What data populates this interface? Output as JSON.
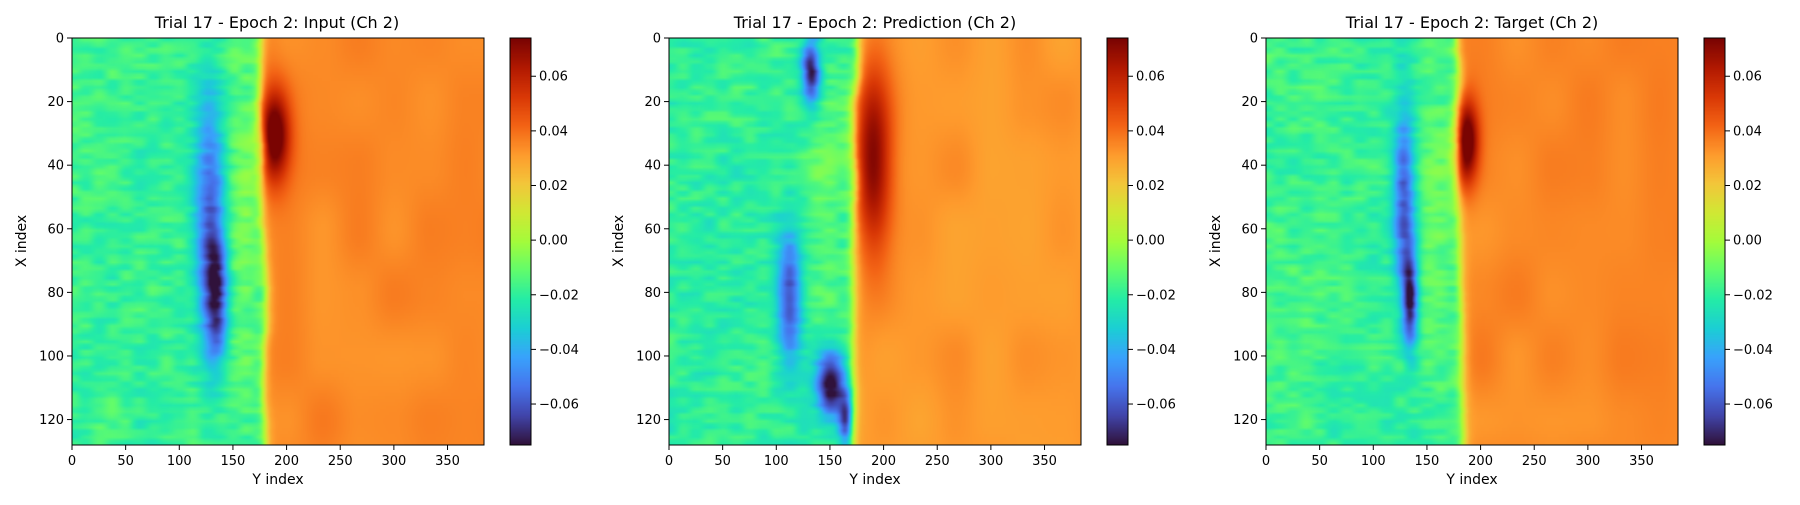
{
  "figure": {
    "background": "#ffffff",
    "colormap": "turbo",
    "colormap_stops": [
      "#30123b",
      "#4145ab",
      "#4675ed",
      "#39a2fc",
      "#1bcfd4",
      "#24eca6",
      "#61fc6c",
      "#a4fc3b",
      "#d1e834",
      "#f3c63a",
      "#fe9b2d",
      "#f36315",
      "#d93806",
      "#b11901",
      "#7a0402"
    ]
  },
  "chart_data": [
    {
      "type": "heatmap",
      "title": "Trial 17 - Epoch 2: Input (Ch 2)",
      "xlabel": "Y index",
      "ylabel": "X index",
      "x_range": [
        0,
        384
      ],
      "y_range": [
        0,
        128
      ],
      "y_inverted": true,
      "xticks": [
        0,
        50,
        100,
        150,
        200,
        250,
        300,
        350
      ],
      "yticks": [
        0,
        20,
        40,
        60,
        80,
        100,
        120
      ],
      "colorbar": {
        "range": [
          -0.075,
          0.074
        ],
        "ticks": [
          -0.06,
          -0.04,
          -0.02,
          0.0,
          0.02,
          0.04,
          0.06
        ]
      },
      "field": {
        "left_value": -0.018,
        "right_value": 0.035,
        "front_y": 178,
        "front_tilt": 5,
        "features": [
          {
            "cx": 128,
            "cy": 58,
            "sx": 10,
            "sy": 28,
            "value": -0.045
          },
          {
            "cx": 135,
            "cy": 82,
            "sx": 7,
            "sy": 15,
            "value": -0.04
          },
          {
            "cx": 188,
            "cy": 30,
            "sx": 10,
            "sy": 10,
            "value": 0.055
          },
          {
            "cx": 158,
            "cy": 55,
            "sx": 12,
            "sy": 35,
            "value": 0.012
          }
        ]
      }
    },
    {
      "type": "heatmap",
      "title": "Trial 17 - Epoch 2: Prediction (Ch 2)",
      "xlabel": "Y index",
      "ylabel": "X index",
      "x_range": [
        0,
        384
      ],
      "y_range": [
        0,
        128
      ],
      "y_inverted": true,
      "xticks": [
        0,
        50,
        100,
        150,
        200,
        250,
        300,
        350
      ],
      "yticks": [
        0,
        20,
        40,
        60,
        80,
        100,
        120
      ],
      "colorbar": {
        "range": [
          -0.075,
          0.074
        ],
        "ticks": [
          -0.06,
          -0.04,
          -0.02,
          0.0,
          0.02,
          0.04,
          0.06
        ]
      },
      "field": {
        "left_value": -0.02,
        "right_value": 0.032,
        "front_y": 172,
        "front_tilt": -4,
        "features": [
          {
            "cx": 132,
            "cy": 10,
            "sx": 6,
            "sy": 7,
            "value": -0.06
          },
          {
            "cx": 112,
            "cy": 82,
            "sx": 8,
            "sy": 14,
            "value": -0.05
          },
          {
            "cx": 150,
            "cy": 108,
            "sx": 10,
            "sy": 7,
            "value": -0.07
          },
          {
            "cx": 165,
            "cy": 120,
            "sx": 5,
            "sy": 6,
            "value": -0.05
          },
          {
            "cx": 145,
            "cy": 45,
            "sx": 14,
            "sy": 45,
            "value": 0.008
          },
          {
            "cx": 190,
            "cy": 38,
            "sx": 12,
            "sy": 20,
            "value": 0.045
          }
        ]
      }
    },
    {
      "type": "heatmap",
      "title": "Trial 17 - Epoch 2: Target (Ch 2)",
      "xlabel": "Y index",
      "ylabel": "X index",
      "x_range": [
        0,
        384
      ],
      "y_range": [
        0,
        128
      ],
      "y_inverted": true,
      "xticks": [
        0,
        50,
        100,
        150,
        200,
        250,
        300,
        350
      ],
      "yticks": [
        0,
        20,
        40,
        60,
        80,
        100,
        120
      ],
      "colorbar": {
        "range": [
          -0.075,
          0.074
        ],
        "ticks": [
          -0.06,
          -0.04,
          -0.02,
          0.0,
          0.02,
          0.04,
          0.06
        ]
      },
      "field": {
        "left_value": -0.018,
        "right_value": 0.035,
        "front_y": 180,
        "front_tilt": 5,
        "features": [
          {
            "cx": 128,
            "cy": 50,
            "sx": 7,
            "sy": 22,
            "value": -0.045
          },
          {
            "cx": 134,
            "cy": 82,
            "sx": 5,
            "sy": 10,
            "value": -0.06
          },
          {
            "cx": 186,
            "cy": 32,
            "sx": 8,
            "sy": 9,
            "value": 0.058
          },
          {
            "cx": 158,
            "cy": 55,
            "sx": 12,
            "sy": 35,
            "value": 0.01
          }
        ]
      }
    }
  ]
}
